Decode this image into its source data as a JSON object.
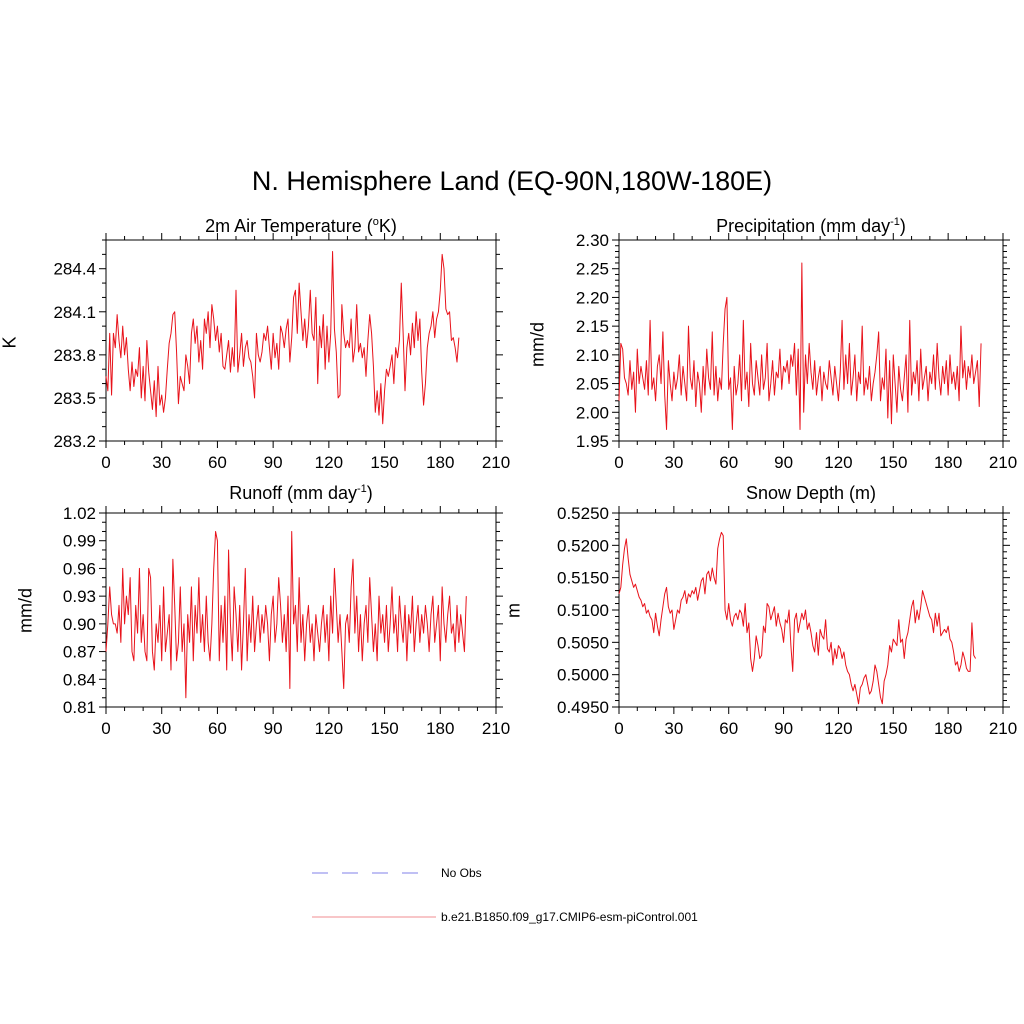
{
  "figure": {
    "title": "N. Hemisphere Land (EQ-90N,180W-180E)"
  },
  "colors": {
    "model_line": "#e8121a",
    "obs_line": "#9a9aee",
    "axis": "#000000"
  },
  "legend": {
    "items": [
      {
        "label": "No Obs",
        "style": "dashed",
        "color": "#9a9aee"
      },
      {
        "label": "b.e21.B1850.f09_g17.CMIP6-esm-piControl.001",
        "style": "solid",
        "color": "#e8121a"
      }
    ]
  },
  "chart_data": [
    {
      "type": "line",
      "id": "temp",
      "title_text": "2m Air Temperature (",
      "title_sup": "o",
      "title_tail": "K)",
      "ylabel": "K",
      "xlim": [
        0,
        210
      ],
      "ylim": [
        283.2,
        284.6
      ],
      "xticks": [
        0,
        30,
        60,
        90,
        120,
        150,
        180,
        210
      ],
      "yticks": [
        283.2,
        283.5,
        283.8,
        284.1,
        284.4
      ],
      "ytick_labels": [
        "283.2",
        "283.5",
        "283.8",
        "284.1",
        "284.4"
      ],
      "series": [
        {
          "name": "b.e21.B1850.f09_g17.CMIP6-esm-piControl.001",
          "values": [
            283.65,
            283.55,
            283.95,
            283.52,
            283.95,
            283.85,
            284.08,
            283.9,
            283.78,
            284.0,
            283.8,
            283.92,
            283.7,
            283.55,
            283.75,
            283.58,
            283.7,
            283.65,
            283.85,
            283.5,
            283.72,
            283.48,
            283.9,
            283.68,
            283.55,
            283.42,
            283.62,
            283.37,
            283.72,
            283.45,
            283.52,
            283.4,
            283.5,
            283.7,
            283.88,
            283.95,
            284.08,
            284.1,
            283.82,
            283.46,
            283.65,
            283.6,
            283.55,
            283.8,
            283.72,
            283.6,
            283.95,
            284.05,
            283.88,
            284.0,
            283.75,
            283.9,
            283.7,
            284.05,
            283.95,
            284.1,
            283.85,
            284.15,
            284.05,
            283.9,
            284.0,
            283.82,
            283.95,
            283.72,
            283.7,
            283.8,
            283.9,
            283.68,
            283.85,
            283.72,
            284.25,
            283.68,
            283.8,
            283.95,
            283.72,
            283.85,
            283.9,
            283.78,
            283.75,
            283.65,
            283.5,
            283.95,
            283.8,
            283.75,
            283.82,
            283.95,
            283.9,
            284.0,
            283.85,
            283.7,
            283.95,
            283.78,
            283.88,
            283.7,
            284.0,
            283.95,
            283.85,
            283.98,
            284.05,
            283.75,
            283.92,
            284.2,
            284.25,
            283.95,
            284.3,
            284.1,
            283.9,
            284.05,
            283.85,
            284.0,
            284.25,
            283.95,
            283.9,
            284.2,
            283.6,
            284.0,
            283.85,
            284.08,
            283.7,
            284.0,
            283.75,
            283.95,
            284.52,
            283.98,
            283.82,
            283.5,
            283.52,
            284.15,
            283.95,
            283.85,
            283.9,
            283.85,
            284.05,
            283.75,
            283.85,
            284.15,
            283.82,
            283.88,
            283.78,
            283.85,
            283.65,
            283.9,
            284.08,
            283.95,
            283.72,
            283.4,
            283.55,
            283.38,
            283.6,
            283.32,
            283.55,
            283.7,
            283.65,
            283.72,
            283.8,
            283.6,
            283.85,
            283.78,
            283.9,
            284.3,
            283.95,
            283.55,
            283.85,
            283.95,
            283.8,
            284.02,
            283.85,
            284.1,
            283.9,
            284.05,
            283.68,
            283.45,
            283.6,
            283.85,
            283.95,
            284.0,
            284.1,
            283.92,
            284.05,
            284.1,
            284.25,
            284.5,
            284.4,
            284.12,
            284.08,
            284.1,
            283.9,
            283.92,
            283.85,
            283.75,
            283.92
          ]
        }
      ]
    },
    {
      "type": "line",
      "id": "precip",
      "title_text": "Precipitation (mm day",
      "title_sup": "-1",
      "title_tail": ")",
      "ylabel": "mm/d",
      "xlim": [
        0,
        210
      ],
      "ylim": [
        1.95,
        2.3
      ],
      "xticks": [
        0,
        30,
        60,
        90,
        120,
        150,
        180,
        210
      ],
      "yticks": [
        1.95,
        2.0,
        2.05,
        2.1,
        2.15,
        2.2,
        2.25,
        2.3
      ],
      "ytick_labels": [
        "1.95",
        "2.00",
        "2.05",
        "2.10",
        "2.15",
        "2.20",
        "2.25",
        "2.30"
      ],
      "series": [
        {
          "name": "b.e21.B1850.f09_g17.CMIP6-esm-piControl.001",
          "values": [
            2.02,
            2.12,
            2.11,
            2.06,
            2.05,
            2.03,
            2.09,
            2.04,
            2.07,
            2.0,
            2.11,
            2.05,
            2.08,
            2.06,
            2.04,
            2.09,
            2.03,
            2.16,
            2.04,
            2.06,
            2.02,
            2.08,
            2.1,
            2.05,
            2.14,
            2.03,
            1.97,
            2.09,
            2.05,
            2.02,
            2.07,
            2.04,
            2.06,
            2.1,
            2.03,
            2.08,
            2.05,
            2.02,
            2.15,
            2.06,
            2.04,
            2.09,
            2.01,
            2.07,
            2.05,
            2.0,
            2.08,
            2.03,
            2.11,
            2.06,
            2.04,
            2.14,
            2.03,
            2.08,
            2.02,
            2.06,
            2.04,
            2.12,
            2.18,
            2.2,
            2.04,
            2.06,
            1.97,
            2.08,
            2.03,
            2.05,
            2.1,
            2.02,
            2.16,
            2.04,
            2.07,
            2.01,
            2.12,
            2.05,
            2.03,
            2.09,
            2.06,
            2.03,
            2.1,
            2.04,
            2.06,
            2.12,
            2.02,
            2.05,
            2.09,
            2.03,
            2.07,
            2.06,
            2.11,
            2.04,
            2.08,
            2.07,
            2.09,
            2.05,
            2.1,
            2.08,
            2.12,
            2.03,
            2.11,
            1.97,
            2.26,
            2.0,
            2.1,
            2.05,
            2.12,
            2.07,
            2.04,
            2.09,
            2.03,
            2.06,
            2.08,
            2.02,
            2.07,
            2.05,
            2.04,
            2.09,
            2.06,
            2.03,
            2.08,
            2.05,
            2.02,
            2.07,
            2.16,
            2.04,
            2.1,
            2.05,
            2.12,
            2.03,
            2.06,
            2.1,
            2.02,
            2.07,
            2.05,
            2.15,
            2.03,
            2.06,
            2.04,
            2.08,
            2.02,
            2.05,
            2.07,
            2.1,
            2.14,
            2.02,
            2.06,
            2.04,
            2.11,
            1.99,
            2.09,
            1.98,
            2.1,
            2.05,
            2.0,
            2.08,
            2.04,
            2.02,
            2.06,
            2.1,
            2.0,
            2.16,
            2.03,
            2.07,
            2.05,
            2.09,
            2.02,
            2.11,
            2.04,
            2.06,
            2.08,
            2.02,
            2.07,
            2.05,
            2.1,
            2.04,
            2.12,
            2.06,
            2.03,
            2.08,
            2.05,
            2.09,
            2.03,
            2.1,
            2.05,
            2.07,
            2.04,
            2.08,
            2.02,
            2.15,
            2.06,
            2.09,
            2.04,
            2.08,
            2.06,
            2.1,
            2.05,
            2.07,
            2.09,
            2.01,
            2.12
          ]
        }
      ]
    },
    {
      "type": "line",
      "id": "runoff",
      "title_text": "Runoff (mm day",
      "title_sup": "-1",
      "title_tail": ")",
      "ylabel": "mm/d",
      "xlim": [
        0,
        210
      ],
      "ylim": [
        0.81,
        1.02
      ],
      "xticks": [
        0,
        30,
        60,
        90,
        120,
        150,
        180,
        210
      ],
      "yticks": [
        0.81,
        0.84,
        0.87,
        0.9,
        0.93,
        0.96,
        0.99,
        1.02
      ],
      "ytick_labels": [
        "0.81",
        "0.84",
        "0.87",
        "0.90",
        "0.93",
        "0.96",
        "0.99",
        "1.02"
      ],
      "series": [
        {
          "name": "b.e21.B1850.f09_g17.CMIP6-esm-piControl.001",
          "values": [
            0.87,
            0.9,
            0.94,
            0.91,
            0.9,
            0.9,
            0.89,
            0.92,
            0.88,
            0.96,
            0.9,
            0.93,
            0.91,
            0.95,
            0.87,
            0.86,
            0.92,
            0.89,
            0.96,
            0.88,
            0.91,
            0.87,
            0.86,
            0.96,
            0.95,
            0.87,
            0.85,
            0.9,
            0.88,
            0.92,
            0.86,
            0.94,
            0.87,
            0.89,
            0.91,
            0.85,
            0.97,
            0.92,
            0.86,
            0.88,
            0.94,
            0.87,
            0.9,
            0.82,
            0.91,
            0.88,
            0.94,
            0.86,
            0.92,
            0.89,
            0.95,
            0.88,
            0.91,
            0.87,
            0.93,
            0.88,
            0.86,
            0.9,
            0.96,
            1.0,
            0.99,
            0.86,
            0.92,
            0.88,
            0.93,
            0.85,
            0.98,
            0.9,
            0.86,
            0.94,
            0.91,
            0.87,
            0.92,
            0.85,
            0.9,
            0.96,
            0.86,
            0.91,
            0.88,
            0.93,
            0.87,
            0.9,
            0.92,
            0.88,
            0.91,
            0.89,
            0.92,
            0.9,
            0.86,
            0.91,
            0.93,
            0.88,
            0.9,
            0.95,
            0.92,
            0.88,
            0.91,
            0.87,
            0.93,
            0.83,
            1.0,
            0.9,
            0.92,
            0.87,
            0.95,
            0.88,
            0.91,
            0.86,
            0.9,
            0.92,
            0.88,
            0.9,
            0.86,
            0.91,
            0.89,
            0.87,
            0.9,
            0.92,
            0.88,
            0.91,
            0.86,
            0.93,
            0.89,
            0.96,
            0.92,
            0.88,
            0.91,
            0.87,
            0.83,
            0.9,
            0.91,
            0.88,
            0.94,
            0.97,
            0.89,
            0.93,
            0.87,
            0.91,
            0.86,
            0.9,
            0.92,
            0.88,
            0.95,
            0.91,
            0.87,
            0.9,
            0.86,
            0.93,
            0.89,
            0.91,
            0.88,
            0.92,
            0.87,
            0.9,
            0.94,
            0.89,
            0.91,
            0.87,
            0.93,
            0.9,
            0.88,
            0.92,
            0.86,
            0.91,
            0.89,
            0.93,
            0.87,
            0.9,
            0.92,
            0.88,
            0.91,
            0.89,
            0.92,
            0.9,
            0.87,
            0.91,
            0.93,
            0.88,
            0.9,
            0.92,
            0.86,
            0.94,
            0.9,
            0.88,
            0.91,
            0.93,
            0.89,
            0.9,
            0.87,
            0.92,
            0.88,
            0.91,
            0.89,
            0.87,
            0.93
          ]
        }
      ]
    },
    {
      "type": "line",
      "id": "snow",
      "title_text": "Snow Depth (m)",
      "title_sup": "",
      "title_tail": "",
      "ylabel": "m",
      "xlim": [
        0,
        210
      ],
      "ylim": [
        0.495,
        0.525
      ],
      "xticks": [
        0,
        30,
        60,
        90,
        120,
        150,
        180,
        210
      ],
      "yticks": [
        0.495,
        0.5,
        0.505,
        0.51,
        0.515,
        0.52,
        0.525
      ],
      "ytick_labels": [
        "0.4950",
        "0.5000",
        "0.5050",
        "0.5100",
        "0.5150",
        "0.5200",
        "0.5250"
      ],
      "series": [
        {
          "name": "b.e21.B1850.f09_g17.CMIP6-esm-piControl.001",
          "values": [
            0.5125,
            0.5135,
            0.517,
            0.5195,
            0.521,
            0.518,
            0.5155,
            0.5145,
            0.5135,
            0.514,
            0.513,
            0.512,
            0.5115,
            0.5105,
            0.511,
            0.5095,
            0.51,
            0.509,
            0.5085,
            0.5065,
            0.5095,
            0.5075,
            0.506,
            0.5085,
            0.5105,
            0.5125,
            0.5135,
            0.5105,
            0.5095,
            0.51,
            0.507,
            0.5085,
            0.51,
            0.5095,
            0.5115,
            0.512,
            0.513,
            0.511,
            0.5125,
            0.512,
            0.513,
            0.5125,
            0.5135,
            0.5115,
            0.513,
            0.5145,
            0.515,
            0.5125,
            0.5155,
            0.516,
            0.5145,
            0.5165,
            0.515,
            0.514,
            0.5195,
            0.521,
            0.522,
            0.5215,
            0.51,
            0.5085,
            0.511,
            0.5085,
            0.5075,
            0.509,
            0.5095,
            0.5085,
            0.51,
            0.5095,
            0.5075,
            0.511,
            0.5065,
            0.508,
            0.5025,
            0.5005,
            0.5025,
            0.506,
            0.5045,
            0.5025,
            0.503,
            0.5075,
            0.5065,
            0.511,
            0.5105,
            0.5085,
            0.5095,
            0.5105,
            0.5075,
            0.5095,
            0.508,
            0.507,
            0.505,
            0.5085,
            0.508,
            0.51,
            0.5045,
            0.5005,
            0.5085,
            0.5095,
            0.5065,
            0.508,
            0.5095,
            0.5085,
            0.51,
            0.507,
            0.508,
            0.5065,
            0.5045,
            0.5035,
            0.5065,
            0.503,
            0.507,
            0.506,
            0.5055,
            0.5085,
            0.504,
            0.5035,
            0.505,
            0.5015,
            0.504,
            0.5025,
            0.5045,
            0.504,
            0.5025,
            0.5035,
            0.5015,
            0.5005,
            0.5,
            0.4985,
            0.4975,
            0.4985,
            0.497,
            0.4955,
            0.498,
            0.4985,
            0.4995,
            0.5,
            0.4985,
            0.497,
            0.4975,
            0.499,
            0.5015,
            0.5005,
            0.4985,
            0.4965,
            0.4955,
            0.499,
            0.5,
            0.5015,
            0.5045,
            0.5035,
            0.5055,
            0.505,
            0.5045,
            0.5085,
            0.505,
            0.5055,
            0.5025,
            0.5055,
            0.5065,
            0.5085,
            0.5105,
            0.5115,
            0.508,
            0.51,
            0.5085,
            0.5105,
            0.513,
            0.512,
            0.511,
            0.51,
            0.509,
            0.5085,
            0.5065,
            0.5095,
            0.5075,
            0.5095,
            0.506,
            0.5065,
            0.507,
            0.5065,
            0.5075,
            0.5055,
            0.505,
            0.5035,
            0.5015,
            0.502,
            0.5005,
            0.5015,
            0.5035,
            0.5025,
            0.501,
            0.5005,
            0.5005,
            0.508,
            0.503,
            0.5025
          ]
        }
      ]
    }
  ]
}
